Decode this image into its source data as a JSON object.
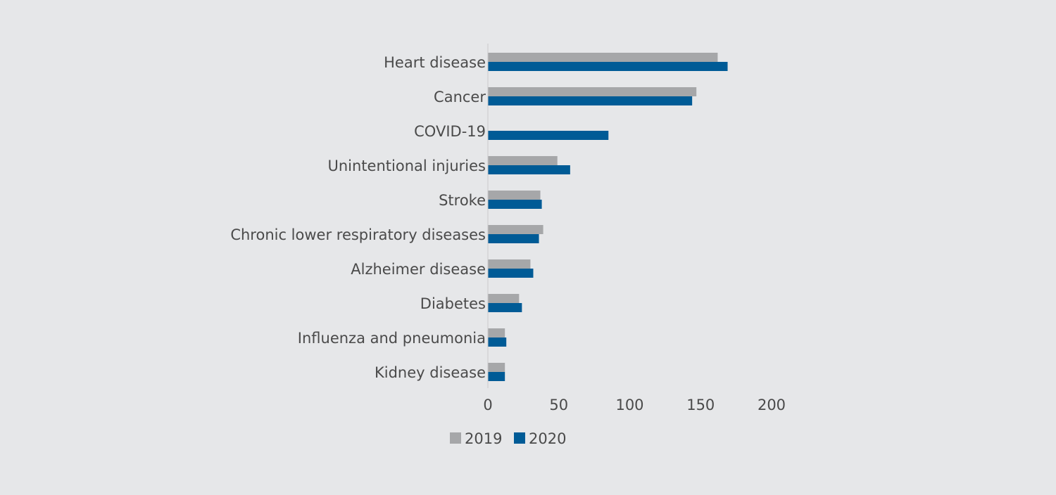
{
  "chart_data": {
    "type": "bar",
    "orientation": "horizontal",
    "categories": [
      "Heart disease",
      "Cancer",
      "COVID-19",
      "Unintentional injuries",
      "Stroke",
      "Chronic lower respiratory diseases",
      "Alzheimer disease",
      "Diabetes",
      "Influenza and pneumonia",
      "Kidney disease"
    ],
    "series": [
      {
        "name": "2019",
        "color": "#a6a7a9",
        "values": [
          162,
          147,
          null,
          49,
          37,
          39,
          30,
          22,
          12,
          12
        ]
      },
      {
        "name": "2020",
        "color": "#005b96",
        "values": [
          169,
          144,
          85,
          58,
          38,
          36,
          32,
          24,
          13,
          12
        ]
      }
    ],
    "title": "",
    "xlabel": "",
    "ylabel": "",
    "xlim": [
      0,
      200
    ],
    "xticks": [
      0,
      50,
      100,
      150,
      200
    ],
    "grid": false,
    "legend": "bottom"
  }
}
